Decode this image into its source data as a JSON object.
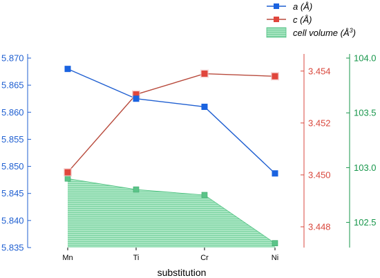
{
  "chart_data": {
    "type": "line",
    "xlabel": "substitution",
    "categories": [
      "Mn",
      "Ti",
      "Cr",
      "Ni"
    ],
    "axes": {
      "left": {
        "color": "#1f5fd1",
        "ylim": [
          5.835,
          5.87
        ],
        "ticks": [
          "5.835",
          "5.840",
          "5.845",
          "5.850",
          "5.855",
          "5.860",
          "5.865",
          "5.870"
        ]
      },
      "right1": {
        "color": "#d9473c",
        "ylim": [
          3.4472,
          3.4545
        ],
        "ticks": [
          "3.448",
          "3.450",
          "3.452",
          "3.454"
        ]
      },
      "right2": {
        "color": "#16964a",
        "ylim": [
          102.27,
          104.0
        ],
        "ticks": [
          "102.5",
          "103.0",
          "103.5",
          "104.0"
        ]
      }
    },
    "series": [
      {
        "name": "a (Å)",
        "axis": "left",
        "color": "#1f5fd1",
        "marker": "#1a63e0",
        "values": [
          5.868,
          5.8625,
          5.861,
          5.8487
        ]
      },
      {
        "name": "c (Å)",
        "axis": "right1",
        "color": "#b84a3c",
        "marker": "#e0463c",
        "values": [
          3.4501,
          3.4531,
          3.4539,
          3.4538
        ]
      },
      {
        "name": "cell volume (Å",
        "name_sup": "3",
        "name_end": ")",
        "axis": "right2",
        "type": "area",
        "color": "#4cc07f",
        "fill": "#8fdcae",
        "values": [
          102.9,
          102.8,
          102.75,
          102.31
        ]
      }
    ],
    "legend": {
      "placement": "top-right"
    }
  }
}
